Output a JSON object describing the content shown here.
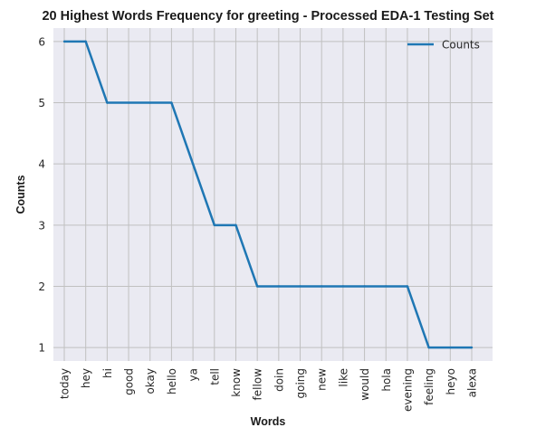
{
  "chart_data": {
    "type": "line",
    "title": "20 Highest Words Frequency for greeting - Processed EDA-1 Testing Set",
    "xlabel": "Words",
    "ylabel": "Counts",
    "categories": [
      "today",
      "hey",
      "hi",
      "good",
      "okay",
      "hello",
      "ya",
      "tell",
      "know",
      "fellow",
      "doin",
      "going",
      "new",
      "like",
      "would",
      "hola",
      "evening",
      "feeling",
      "heyo",
      "alexa"
    ],
    "series": [
      {
        "name": "Counts",
        "values": [
          6,
          6,
          5,
          5,
          5,
          5,
          4,
          3,
          3,
          2,
          2,
          2,
          2,
          2,
          2,
          2,
          2,
          1,
          1,
          1
        ]
      }
    ],
    "yticks": [
      1,
      2,
      3,
      4,
      5,
      6
    ],
    "ylim": [
      0.78,
      6.22
    ],
    "grid": true,
    "legend": "top-right",
    "colors": {
      "line": "#1f77b4",
      "plot_bg": "#eaeaf2",
      "grid": "#c0c0c0"
    }
  }
}
